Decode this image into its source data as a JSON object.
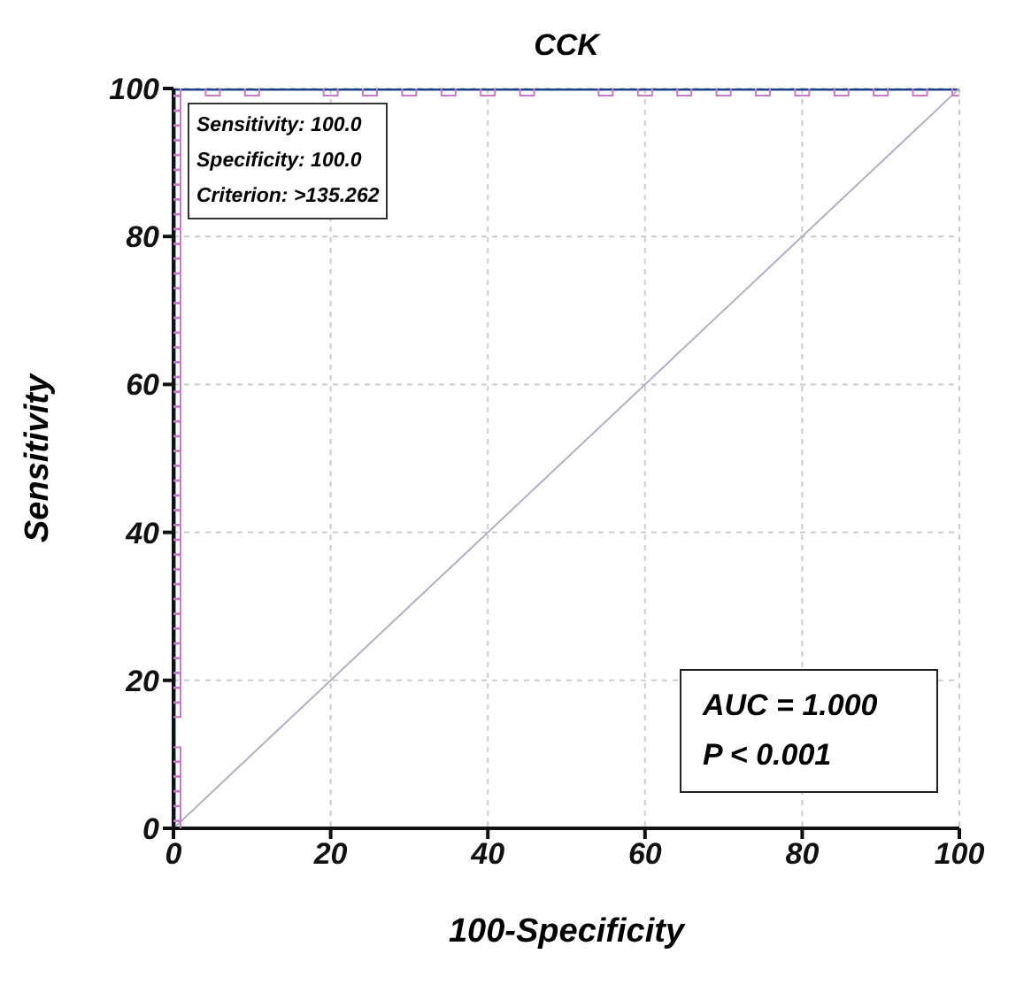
{
  "chart_data": {
    "type": "line",
    "title": "CCK",
    "xlabel": "100-Specificity",
    "ylabel": "Sensitivity",
    "xlim": [
      0,
      100
    ],
    "ylim": [
      0,
      100
    ],
    "xticks": [
      0,
      20,
      40,
      60,
      80,
      100
    ],
    "yticks": [
      0,
      20,
      40,
      60,
      80,
      100
    ],
    "grid": true,
    "legend": false,
    "marker": "square",
    "line_style": "solid",
    "series": [
      {
        "color": "#1f3f8f",
        "x": [
          0,
          0,
          0,
          0,
          0,
          0,
          0,
          0,
          0,
          0,
          0,
          0,
          0,
          0,
          0,
          0,
          0,
          0,
          0,
          0,
          0,
          0,
          0,
          0,
          0,
          0,
          0,
          0,
          0,
          0,
          0,
          0,
          0,
          0,
          0,
          0,
          0,
          0,
          0,
          0,
          0,
          0,
          0,
          0,
          0,
          0,
          0,
          0,
          0,
          0,
          0,
          0,
          5,
          10,
          20,
          25,
          30,
          35,
          40,
          45,
          55,
          60,
          65,
          70,
          75,
          80,
          85,
          90,
          95,
          100
        ],
        "values": [
          0,
          2,
          4,
          6,
          8,
          10,
          16,
          18,
          20,
          22,
          24,
          26,
          28,
          30,
          32,
          34,
          36,
          38,
          40,
          42,
          44,
          46,
          48,
          50,
          52,
          54,
          56,
          58,
          60,
          62,
          64,
          66,
          68,
          70,
          72,
          74,
          76,
          78,
          80,
          82,
          84,
          86,
          88,
          90,
          92,
          94,
          96,
          98,
          100,
          100,
          100,
          100,
          100,
          100,
          100,
          100,
          100,
          100,
          100,
          100,
          100,
          100,
          100,
          100,
          100,
          100,
          100,
          100,
          100,
          100
        ]
      },
      {
        "color": "#b0b0c0",
        "marker": "none",
        "x": [
          0,
          100
        ],
        "values": [
          0,
          100
        ]
      }
    ],
    "annotations": [
      "Sensitivity: 100.0",
      "Specificity: 100.0",
      "Criterion: >135.262",
      "AUC = 1.000",
      "P < 0.001"
    ]
  }
}
